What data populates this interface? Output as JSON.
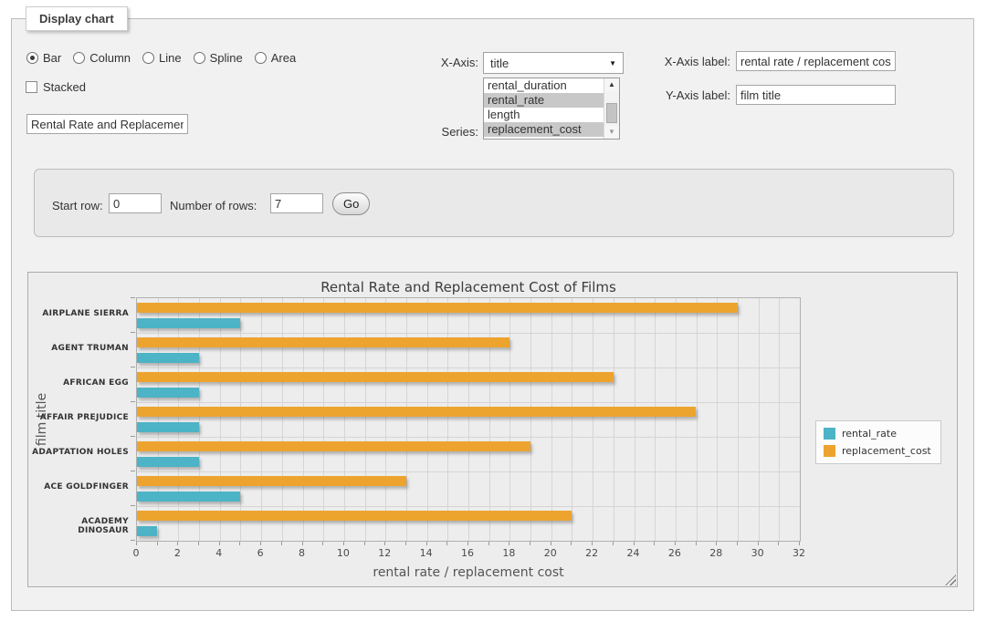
{
  "panel": {
    "legend": "Display chart"
  },
  "controls": {
    "chart_type": {
      "options": [
        "Bar",
        "Column",
        "Line",
        "Spline",
        "Area"
      ],
      "selected": "Bar"
    },
    "stacked": {
      "label": "Stacked",
      "checked": false
    },
    "chart_title_input": {
      "value": "Rental Rate and Replacement Cost of Films"
    },
    "x_axis": {
      "label": "X-Axis:",
      "selected": "title"
    },
    "series_picker": {
      "label": "Series:",
      "options": [
        "rental_duration",
        "rental_rate",
        "length",
        "replacement_cost"
      ],
      "selected": [
        "rental_rate",
        "replacement_cost"
      ]
    },
    "x_axis_label": {
      "label": "X-Axis label:",
      "value": "rental rate / replacement cost"
    },
    "y_axis_label": {
      "label": "Y-Axis label:",
      "value": "film title"
    }
  },
  "row_form": {
    "start_row_label": "Start row:",
    "start_row_value": "0",
    "num_rows_label": "Number of rows:",
    "num_rows_value": "7",
    "go_label": "Go"
  },
  "chart_data": {
    "type": "bar",
    "orientation": "horizontal",
    "title": "Rental Rate and Replacement Cost of Films",
    "xlabel": "rental rate / replacement cost",
    "ylabel": "film title",
    "categories": [
      "AIRPLANE SIERRA",
      "AGENT TRUMAN",
      "AFRICAN EGG",
      "AFFAIR PREJUDICE",
      "ADAPTATION HOLES",
      "ACE GOLDFINGER",
      "ACADEMY DINOSAUR"
    ],
    "series": [
      {
        "name": "rental_rate",
        "color": "#4db3c6",
        "values": [
          4.99,
          2.99,
          2.99,
          2.99,
          2.99,
          4.99,
          0.99
        ]
      },
      {
        "name": "replacement_cost",
        "color": "#eda42e",
        "values": [
          28.99,
          17.99,
          22.99,
          26.99,
          18.99,
          12.99,
          20.99
        ]
      }
    ],
    "series_row_order": [
      "replacement_cost",
      "rental_rate"
    ],
    "xlim": [
      0,
      32
    ],
    "x_label_step": 2,
    "x_grid_step": 1,
    "grid": true,
    "legend_position": "right-middle"
  }
}
